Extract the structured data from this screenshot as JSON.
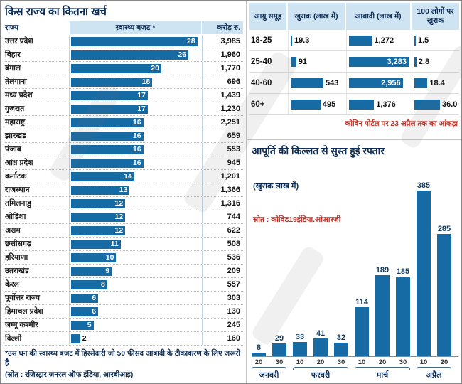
{
  "colors": {
    "bar": "#176ba5",
    "header_bg": "#cfe4f2",
    "title": "#0d2c54",
    "accent_red": "#c43025"
  },
  "chart_data": [
    {
      "type": "bar",
      "orientation": "horizontal",
      "title": "किस राज्य का कितना खर्च",
      "columns": [
        "राज्य",
        "स्वास्थ्य बजट *",
        "करोड़ रु."
      ],
      "xlim": [
        0,
        28
      ],
      "rows": [
        {
          "state": "उत्तर प्रदेश",
          "budget": 28,
          "crore": "3,985"
        },
        {
          "state": "बिहार",
          "budget": 26,
          "crore": "1,960"
        },
        {
          "state": "बंगाल",
          "budget": 20,
          "crore": "1,770"
        },
        {
          "state": "तेलंगाना",
          "budget": 18,
          "crore": "696"
        },
        {
          "state": "मध्य प्रदेश",
          "budget": 17,
          "crore": "1,439"
        },
        {
          "state": "गुजरात",
          "budget": 17,
          "crore": "1,230"
        },
        {
          "state": "महाराष्ट्र",
          "budget": 16,
          "crore": "2,251"
        },
        {
          "state": "झारखंड",
          "budget": 16,
          "crore": "659"
        },
        {
          "state": "पंजाब",
          "budget": 16,
          "crore": "553"
        },
        {
          "state": "आंध्र प्रदेश",
          "budget": 16,
          "crore": "945"
        },
        {
          "state": "कर्नाटक",
          "budget": 14,
          "crore": "1,201"
        },
        {
          "state": "राजस्थान",
          "budget": 13,
          "crore": "1,366"
        },
        {
          "state": "तमिलनाडु",
          "budget": 12,
          "crore": "1,316"
        },
        {
          "state": "ओडिशा",
          "budget": 12,
          "crore": "744"
        },
        {
          "state": "असम",
          "budget": 12,
          "crore": "622"
        },
        {
          "state": "छत्तीसगढ़",
          "budget": 11,
          "crore": "508"
        },
        {
          "state": "हरियाणा",
          "budget": 10,
          "crore": "536"
        },
        {
          "state": "उतराखंड",
          "budget": 9,
          "crore": "209"
        },
        {
          "state": "केरल",
          "budget": 8,
          "crore": "557"
        },
        {
          "state": "पूर्वोत्तर राज्य",
          "budget": 6,
          "crore": "303"
        },
        {
          "state": "हिमाचल प्रदेश",
          "budget": 6,
          "crore": "130"
        },
        {
          "state": "जम्मू कश्मीर",
          "budget": 5,
          "crore": "245"
        },
        {
          "state": "दिल्ली",
          "budget": 2,
          "crore": "160"
        }
      ],
      "footnote": "*उस धन की स्वास्थ्य बजट में हिस्सेदारी जो 50 फीसद आबादी के टीकाकरण के लिए जरूरी है",
      "source": "(स्रोत : रजिस्ट्रार जनरल ऑफ इंडिया, आरबीआइ)"
    },
    {
      "type": "table",
      "headers": [
        "आयु समूह",
        "खुराक (लाख में)",
        "आबादी (लाख में)",
        "100 लोगों पर खुराक"
      ],
      "rows": [
        {
          "age": "18-25",
          "dose": "19.3",
          "population": "1,272",
          "per100": "1.5"
        },
        {
          "age": "25-40",
          "dose": "91",
          "population": "3,283",
          "per100": "2.8"
        },
        {
          "age": "40-60",
          "dose": "543",
          "population": "2,956",
          "per100": "18.4"
        },
        {
          "age": "60+",
          "dose": "495",
          "population": "1,376",
          "per100": "36.0"
        }
      ],
      "bar_maxima": {
        "dose": 543,
        "population": 3283,
        "per100": 36
      },
      "footnote": "कोविन पोर्टल पर 23 अप्रैल तक का आंकड़ा"
    },
    {
      "type": "bar",
      "orientation": "vertical",
      "title": "आपूर्ति की किल्लत से सुस्त हुई रफ्तार",
      "subtitle": "(खुराक लाख में)",
      "source": "स्रोत : कोविड19इंडिया.ओआरजी",
      "values": [
        8,
        29,
        33,
        41,
        32,
        114,
        189,
        185,
        385,
        285
      ],
      "tick_labels": [
        "20",
        "30",
        "10",
        "20",
        "30",
        "10",
        "20",
        "30",
        "10",
        "20"
      ],
      "months": [
        {
          "label": "जनवरी",
          "span": 2
        },
        {
          "label": "फरवरी",
          "span": 3
        },
        {
          "label": "मार्च",
          "span": 3
        },
        {
          "label": "अप्रैल",
          "span": 2
        }
      ],
      "ylim": [
        0,
        385
      ]
    }
  ]
}
